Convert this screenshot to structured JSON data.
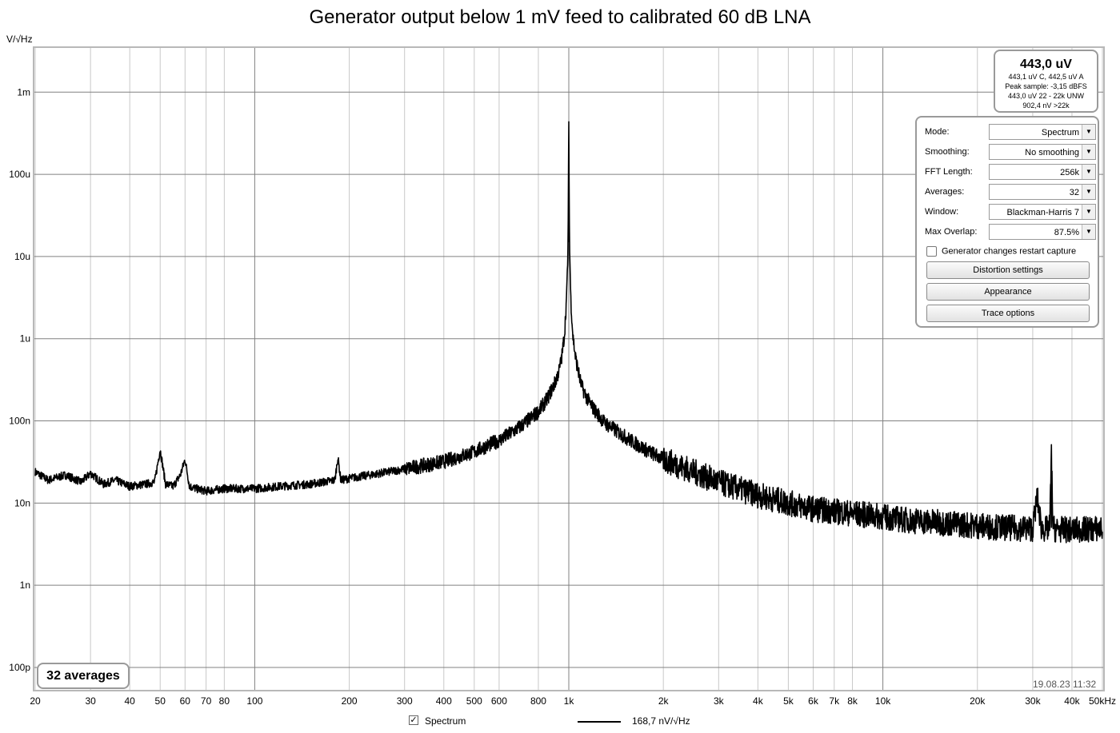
{
  "title": "Generator output below 1 mV feed to calibrated 60 dB LNA",
  "y_unit": "V/√Hz",
  "readout": {
    "main": "443,0 uV",
    "lines": [
      "443,1 uV C, 442,5 uV A",
      "Peak sample: -3,15 dBFS",
      "443,0 uV 22 - 22k UNW",
      "902,4 nV >22k"
    ]
  },
  "settings": {
    "rows": [
      {
        "label": "Mode:",
        "value": "Spectrum"
      },
      {
        "label": "Smoothing:",
        "value": "No  smoothing"
      },
      {
        "label": "FFT Length:",
        "value": "256k"
      },
      {
        "label": "Averages:",
        "value": "32"
      },
      {
        "label": "Window:",
        "value": "Blackman-Harris 7"
      },
      {
        "label": "Max Overlap:",
        "value": "87.5%"
      }
    ],
    "checkbox_label": "Generator changes restart capture",
    "buttons": [
      "Distortion settings",
      "Appearance",
      "Trace options"
    ]
  },
  "averages_badge": "32 averages",
  "timestamp": "19.08.23 11:32",
  "legend": {
    "checkbox_label": "Spectrum",
    "series_value": "168,7 nV/√Hz",
    "checked_mark": "✓"
  },
  "colors": {
    "trace": "#000000",
    "grid_major": "#808080",
    "grid_minor": "#c8c8c8",
    "frame": "#b8b8b8"
  },
  "chart_data": {
    "type": "line",
    "title": "Generator output below 1 mV feed to calibrated 60 dB LNA",
    "ylabel": "V/√Hz",
    "x_scale": "log",
    "y_scale": "log",
    "xlim": [
      20,
      50000
    ],
    "ylim": [
      1e-10,
      0.0033
    ],
    "grid": true,
    "x_ticks": [
      {
        "v": 20,
        "label": "20"
      },
      {
        "v": 30,
        "label": "30"
      },
      {
        "v": 40,
        "label": "40"
      },
      {
        "v": 50,
        "label": "50"
      },
      {
        "v": 60,
        "label": "60"
      },
      {
        "v": 70,
        "label": "70"
      },
      {
        "v": 80,
        "label": "80"
      },
      {
        "v": 100,
        "label": "100"
      },
      {
        "v": 200,
        "label": "200"
      },
      {
        "v": 300,
        "label": "300"
      },
      {
        "v": 400,
        "label": "400"
      },
      {
        "v": 500,
        "label": "500"
      },
      {
        "v": 600,
        "label": "600"
      },
      {
        "v": 800,
        "label": "800"
      },
      {
        "v": 1000,
        "label": "1k"
      },
      {
        "v": 2000,
        "label": "2k"
      },
      {
        "v": 3000,
        "label": "3k"
      },
      {
        "v": 4000,
        "label": "4k"
      },
      {
        "v": 5000,
        "label": "5k"
      },
      {
        "v": 6000,
        "label": "6k"
      },
      {
        "v": 7000,
        "label": "7k"
      },
      {
        "v": 8000,
        "label": "8k"
      },
      {
        "v": 10000,
        "label": "10k"
      },
      {
        "v": 20000,
        "label": "20k"
      },
      {
        "v": 30000,
        "label": "30k"
      },
      {
        "v": 40000,
        "label": "40k"
      },
      {
        "v": 50000,
        "label": "50kHz"
      }
    ],
    "y_ticks": [
      {
        "v": 0.001,
        "label": "1m"
      },
      {
        "v": 0.0001,
        "label": "100u"
      },
      {
        "v": 1e-05,
        "label": "10u"
      },
      {
        "v": 1e-06,
        "label": "1u"
      },
      {
        "v": 1e-07,
        "label": "100n"
      },
      {
        "v": 1e-08,
        "label": "10n"
      },
      {
        "v": 1e-09,
        "label": "1n"
      },
      {
        "v": 1e-10,
        "label": "100p"
      }
    ],
    "series": [
      {
        "x": [
          20,
          22,
          25,
          28,
          30,
          33,
          36,
          40,
          45,
          48,
          50,
          52,
          55,
          58,
          60,
          62,
          65,
          70,
          80,
          90,
          100,
          120,
          150,
          180,
          184,
          188,
          200,
          250,
          300,
          350,
          400,
          450,
          500,
          550,
          600,
          650,
          700,
          750,
          800,
          850,
          900,
          930,
          950,
          970,
          985,
          995,
          1000,
          1005,
          1015,
          1030,
          1050,
          1080,
          1100,
          1150,
          1200,
          1300,
          1500,
          1700,
          2000,
          2500,
          3000,
          4000,
          5000,
          6000,
          8000,
          10000,
          12000,
          15000,
          20000,
          25000,
          30000,
          31000,
          32000,
          33000,
          34000,
          34400,
          34800,
          35500,
          40000,
          45000,
          50000
        ],
        "y": [
          2.4e-08,
          1.9e-08,
          2.2e-08,
          1.8e-08,
          2.3e-08,
          1.7e-08,
          1.9e-08,
          1.6e-08,
          1.7e-08,
          1.8e-08,
          4.5e-08,
          1.7e-08,
          1.6e-08,
          2.2e-08,
          3.4e-08,
          1.6e-08,
          1.5e-08,
          1.4e-08,
          1.5e-08,
          1.5e-08,
          1.5e-08,
          1.6e-08,
          1.7e-08,
          1.9e-08,
          3.6e-08,
          1.9e-08,
          2e-08,
          2.3e-08,
          2.6e-08,
          2.9e-08,
          3.2e-08,
          3.7e-08,
          4.2e-08,
          5e-08,
          5.8e-08,
          7e-08,
          8.5e-08,
          1.05e-07,
          1.3e-07,
          1.8e-07,
          2.8e-07,
          4e-07,
          6e-07,
          1.2e-06,
          3.5e-06,
          1.5e-05,
          0.00044,
          1.5e-05,
          3e-06,
          1.1e-06,
          6e-07,
          3.5e-07,
          2.6e-07,
          1.8e-07,
          1.4e-07,
          9.5e-08,
          6.5e-08,
          4.8e-08,
          3.4e-08,
          2.4e-08,
          1.8e-08,
          1.25e-08,
          1e-08,
          8.5e-09,
          7.5e-09,
          6.8e-09,
          6.2e-09,
          5.8e-09,
          5.3e-09,
          5e-09,
          4.9e-09,
          1.2e-08,
          4.9e-09,
          4.8e-09,
          5e-09,
          4e-08,
          5e-09,
          4.8e-09,
          4.7e-09,
          4.8e-09,
          4.9e-09
        ]
      }
    ]
  }
}
